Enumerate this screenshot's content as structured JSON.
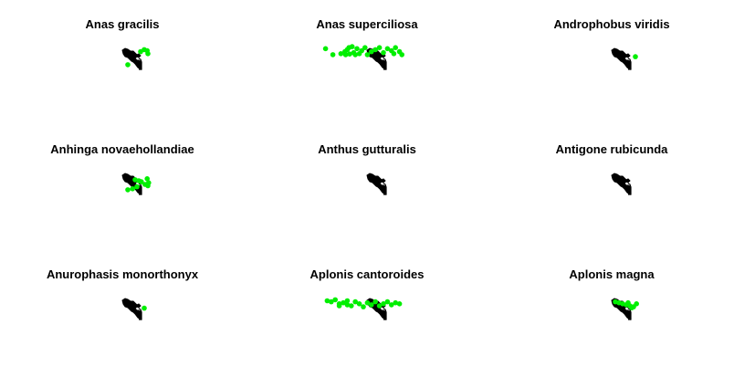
{
  "panels": [
    {
      "title": "Anas gracilis",
      "points": [
        [
          0.88,
          0.25
        ],
        [
          0.8,
          0.2
        ],
        [
          0.35,
          0.95
        ],
        [
          0.7,
          0.3
        ],
        [
          0.9,
          0.4
        ]
      ]
    },
    {
      "title": "Anas superciliosa",
      "points": [
        [
          0.03,
          0.15
        ],
        [
          0.12,
          0.45
        ],
        [
          0.22,
          0.4
        ],
        [
          0.27,
          0.3
        ],
        [
          0.3,
          0.2
        ],
        [
          0.32,
          0.1
        ],
        [
          0.36,
          0.05
        ],
        [
          0.38,
          0.35
        ],
        [
          0.42,
          0.15
        ],
        [
          0.45,
          0.4
        ],
        [
          0.48,
          0.25
        ],
        [
          0.52,
          0.1
        ],
        [
          0.55,
          0.45
        ],
        [
          0.6,
          0.3
        ],
        [
          0.65,
          0.2
        ],
        [
          0.7,
          0.1
        ],
        [
          0.75,
          0.35
        ],
        [
          0.8,
          0.15
        ],
        [
          0.85,
          0.25
        ],
        [
          0.88,
          0.4
        ],
        [
          0.9,
          0.1
        ],
        [
          0.95,
          0.3
        ],
        [
          0.98,
          0.45
        ],
        [
          0.4,
          0.45
        ],
        [
          0.33,
          0.42
        ],
        [
          0.28,
          0.45
        ]
      ]
    },
    {
      "title": "Androphobus viridis",
      "points": [
        [
          0.85,
          0.55
        ]
      ]
    },
    {
      "title": "Anhinga novaehollandiae",
      "points": [
        [
          0.35,
          0.95
        ],
        [
          0.55,
          0.45
        ],
        [
          0.65,
          0.5
        ],
        [
          0.72,
          0.55
        ],
        [
          0.88,
          0.4
        ],
        [
          0.92,
          0.6
        ],
        [
          0.9,
          0.75
        ],
        [
          0.6,
          0.8
        ],
        [
          0.48,
          0.9
        ],
        [
          0.82,
          0.68
        ]
      ]
    },
    {
      "title": "Anthus gutturalis",
      "points": []
    },
    {
      "title": "Antigone rubicunda",
      "points": []
    },
    {
      "title": "Anurophasis monorthonyx",
      "points": [
        [
          0.8,
          0.62
        ]
      ]
    },
    {
      "title": "Aplonis cantoroides",
      "points": [
        [
          0.05,
          0.25
        ],
        [
          0.1,
          0.3
        ],
        [
          0.15,
          0.2
        ],
        [
          0.2,
          0.4
        ],
        [
          0.25,
          0.35
        ],
        [
          0.3,
          0.25
        ],
        [
          0.35,
          0.5
        ],
        [
          0.4,
          0.3
        ],
        [
          0.45,
          0.4
        ],
        [
          0.5,
          0.55
        ],
        [
          0.55,
          0.35
        ],
        [
          0.6,
          0.45
        ],
        [
          0.65,
          0.3
        ],
        [
          0.7,
          0.5
        ],
        [
          0.75,
          0.4
        ],
        [
          0.8,
          0.3
        ],
        [
          0.85,
          0.45
        ],
        [
          0.9,
          0.35
        ],
        [
          0.95,
          0.4
        ],
        [
          0.3,
          0.45
        ],
        [
          0.2,
          0.5
        ]
      ]
    },
    {
      "title": "Aplonis magna",
      "points": [
        [
          0.3,
          0.3
        ],
        [
          0.4,
          0.35
        ],
        [
          0.5,
          0.4
        ],
        [
          0.6,
          0.45
        ],
        [
          0.7,
          0.5
        ],
        [
          0.8,
          0.55
        ],
        [
          0.88,
          0.4
        ],
        [
          0.75,
          0.6
        ],
        [
          0.65,
          0.35
        ]
      ]
    }
  ],
  "colors": {
    "occurrence": "#00ee00",
    "outline": "#000000",
    "title": "#000000",
    "background": "#ffffff"
  }
}
